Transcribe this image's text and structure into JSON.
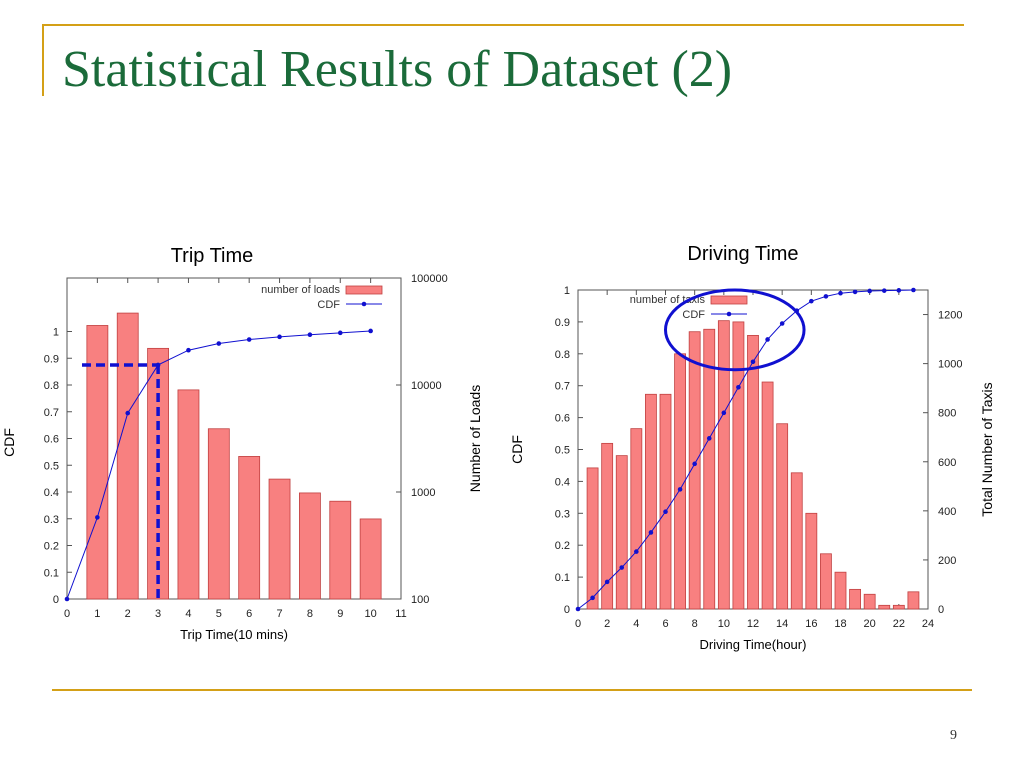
{
  "slide": {
    "title": "Statistical Results of Dataset (2)",
    "page_number": "9"
  },
  "colors": {
    "title": "#1b6b3a",
    "rule": "#d4a017",
    "bar_fill": "#f88080",
    "bar_stroke": "#c04040",
    "cdf_line": "#1010d0",
    "highlight": "#1010d0"
  },
  "chart_data": [
    {
      "type": "bar",
      "title": "Trip Time",
      "xlabel": "Trip Time(10 mins)",
      "ylabel": "CDF",
      "y2label": "Number of Loads",
      "xlim": [
        0,
        11
      ],
      "xticks": [
        "0",
        "1",
        "2",
        "3",
        "4",
        "5",
        "6",
        "7",
        "8",
        "9",
        "10",
        "11"
      ],
      "ylim": [
        0,
        1.2
      ],
      "yticks": [
        "0",
        "0.1",
        "0.2",
        "0.3",
        "0.4",
        "0.5",
        "0.6",
        "0.7",
        "0.8",
        "0.9",
        "1"
      ],
      "y2_scale": "log",
      "y2lim": [
        100,
        100000
      ],
      "y2ticks": [
        "100",
        "1000",
        "10000",
        "100000"
      ],
      "legend": [
        "number of loads",
        "CDF"
      ],
      "legend_position": "top-right",
      "series": [
        {
          "name": "number of loads",
          "axis": "y2",
          "x": [
            1,
            2,
            3,
            4,
            5,
            6,
            7,
            8,
            9,
            10
          ],
          "values": [
            36000,
            47000,
            22000,
            9000,
            3900,
            2150,
            1320,
            980,
            820,
            560
          ]
        },
        {
          "name": "CDF",
          "axis": "y",
          "x": [
            0,
            1,
            2,
            3,
            4,
            5,
            6,
            7,
            8,
            9,
            10
          ],
          "values": [
            0,
            0.305,
            0.695,
            0.875,
            0.93,
            0.955,
            0.97,
            0.98,
            0.988,
            0.995,
            1.002
          ]
        }
      ],
      "annotation": {
        "type": "dashed-crosshair",
        "x": 3,
        "y": 0.875
      }
    },
    {
      "type": "bar",
      "title": "Driving Time",
      "xlabel": "Driving Time(hour)",
      "ylabel": "CDF",
      "y2label": "Total Number of Taxis",
      "xlim": [
        0,
        24
      ],
      "xticks": [
        "0",
        "2",
        "4",
        "6",
        "8",
        "10",
        "12",
        "14",
        "16",
        "18",
        "20",
        "22",
        "24"
      ],
      "ylim": [
        0,
        1
      ],
      "yticks": [
        "0",
        "0.1",
        "0.2",
        "0.3",
        "0.4",
        "0.5",
        "0.6",
        "0.7",
        "0.8",
        "0.9",
        "1"
      ],
      "y2lim": [
        0,
        1300
      ],
      "y2ticks": [
        "0",
        "200",
        "400",
        "600",
        "800",
        "1000",
        "1200"
      ],
      "legend": [
        "number of taxis",
        "CDF"
      ],
      "legend_position": "top-center",
      "series": [
        {
          "name": "number of taxis",
          "axis": "y2",
          "x": [
            1,
            2,
            3,
            4,
            5,
            6,
            7,
            8,
            9,
            10,
            11,
            12,
            13,
            14,
            15,
            16,
            17,
            18,
            19,
            20,
            21,
            22,
            23
          ],
          "values": [
            575,
            675,
            625,
            735,
            875,
            875,
            1040,
            1130,
            1140,
            1175,
            1170,
            1115,
            925,
            755,
            555,
            390,
            225,
            150,
            80,
            60,
            15,
            15,
            70
          ]
        },
        {
          "name": "CDF",
          "axis": "y",
          "x": [
            0,
            1,
            2,
            3,
            4,
            5,
            6,
            7,
            8,
            9,
            10,
            11,
            12,
            13,
            14,
            15,
            16,
            17,
            18,
            19,
            20,
            21,
            22,
            23
          ],
          "values": [
            0,
            0.035,
            0.085,
            0.13,
            0.18,
            0.24,
            0.305,
            0.375,
            0.455,
            0.535,
            0.615,
            0.695,
            0.775,
            0.845,
            0.895,
            0.935,
            0.965,
            0.98,
            0.99,
            0.994,
            0.997,
            0.998,
            0.999,
            1.0
          ]
        }
      ],
      "annotation": {
        "type": "ellipse-highlight",
        "x_range": [
          6,
          15.5
        ],
        "y_range": [
          0.75,
          1.0
        ]
      }
    }
  ]
}
